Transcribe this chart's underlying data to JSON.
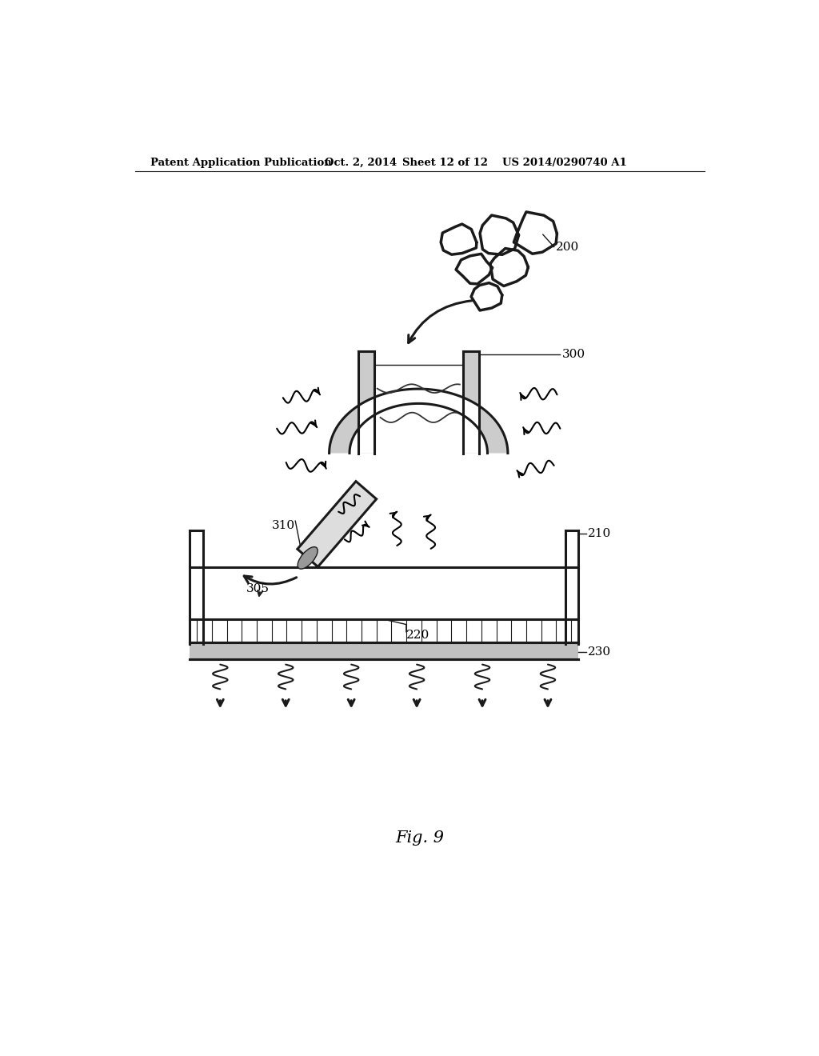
{
  "header_left": "Patent Application Publication",
  "header_mid1": "Oct. 2, 2014",
  "header_mid2": "Sheet 12 of 12",
  "header_right": "US 2014/0290740 A1",
  "fig_label": "Fig. 9",
  "bg_color": "#ffffff",
  "line_color": "#1a1a1a",
  "gray_fill": "#d0d0d0",
  "label_fs": 11
}
